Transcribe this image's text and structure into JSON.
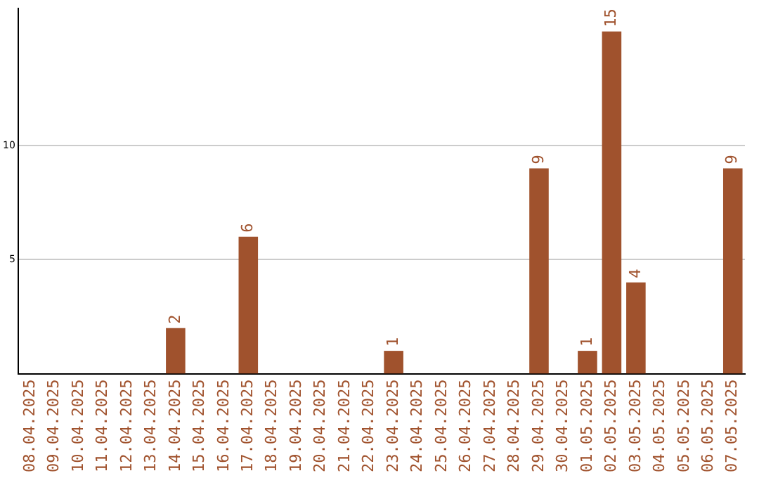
{
  "chart_data": {
    "type": "bar",
    "categories": [
      "08.04.2025",
      "09.04.2025",
      "10.04.2025",
      "11.04.2025",
      "12.04.2025",
      "13.04.2025",
      "14.04.2025",
      "15.04.2025",
      "16.04.2025",
      "17.04.2025",
      "18.04.2025",
      "19.04.2025",
      "20.04.2025",
      "21.04.2025",
      "22.04.2025",
      "23.04.2025",
      "24.04.2025",
      "25.04.2025",
      "26.04.2025",
      "27.04.2025",
      "28.04.2025",
      "29.04.2025",
      "30.04.2025",
      "01.05.2025",
      "02.05.2025",
      "03.05.2025",
      "04.05.2025",
      "05.05.2025",
      "06.05.2025",
      "07.05.2025"
    ],
    "values": [
      0,
      0,
      0,
      0,
      0,
      0,
      2,
      0,
      0,
      6,
      0,
      0,
      0,
      0,
      0,
      1,
      0,
      0,
      0,
      0,
      0,
      9,
      0,
      1,
      15,
      4,
      0,
      0,
      0,
      9
    ],
    "value_labels": [
      null,
      null,
      null,
      null,
      null,
      null,
      "2",
      null,
      null,
      "6",
      null,
      null,
      null,
      null,
      null,
      "1",
      null,
      null,
      null,
      null,
      null,
      "9",
      null,
      "1",
      "15",
      "4",
      null,
      null,
      null,
      "9"
    ],
    "color": "#a0522d",
    "ylim": [
      0,
      16
    ],
    "yticks": [
      5,
      10
    ],
    "grid": "y",
    "legend": false
  }
}
